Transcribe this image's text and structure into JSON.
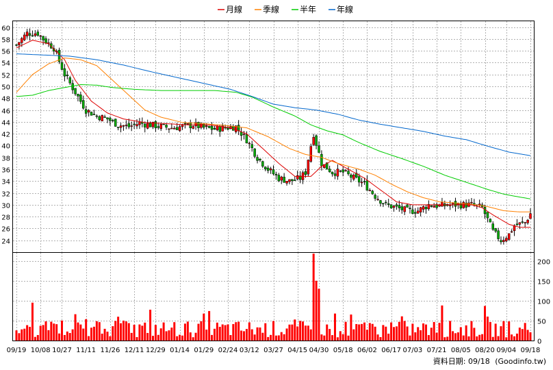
{
  "chart_data": {
    "type": "candlestick",
    "legend": [
      {
        "name": "月線",
        "color": "#dd0000"
      },
      {
        "name": "季線",
        "color": "#ff8000"
      },
      {
        "name": "半年",
        "color": "#00cc00"
      },
      {
        "name": "年線",
        "color": "#0066cc"
      }
    ],
    "price_axis": {
      "min": 22,
      "max": 61,
      "ticks": [
        24,
        26,
        28,
        30,
        32,
        34,
        36,
        38,
        40,
        42,
        44,
        46,
        48,
        50,
        52,
        54,
        56,
        58,
        60
      ]
    },
    "volume_axis": {
      "min": 0,
      "max": 220,
      "ticks": [
        0,
        50,
        100,
        150,
        200
      ]
    },
    "x_tick_labels": [
      "09/19",
      "10/08",
      "10/27",
      "11/11",
      "11/26",
      "12/11",
      "12/29",
      "01/14",
      "01/29",
      "02/24",
      "03/12",
      "03/27",
      "04/15",
      "04/30",
      "05/18",
      "06/02",
      "06/17",
      "07/03",
      "07/21",
      "08/05",
      "08/20",
      "09/04",
      "09/18"
    ],
    "grid": true,
    "colors": {
      "up": "#ff0000",
      "down": "#00aa00",
      "volume": "#ff0000",
      "grid": "#b0b0b0"
    },
    "price_key": [
      [
        0,
        57
      ],
      [
        4,
        59
      ],
      [
        8,
        59
      ],
      [
        10,
        58
      ],
      [
        14,
        56.5
      ],
      [
        18,
        52
      ],
      [
        22,
        49
      ],
      [
        26,
        46
      ],
      [
        30,
        45
      ],
      [
        34,
        44.5
      ],
      [
        38,
        43.5
      ],
      [
        42,
        43.2
      ],
      [
        46,
        43.8
      ],
      [
        50,
        43.5
      ],
      [
        54,
        43.2
      ],
      [
        58,
        43
      ],
      [
        62,
        43.2
      ],
      [
        66,
        43.5
      ],
      [
        70,
        43
      ],
      [
        74,
        42.8
      ],
      [
        78,
        43
      ],
      [
        82,
        43.2
      ],
      [
        86,
        41
      ],
      [
        90,
        38
      ],
      [
        94,
        36
      ],
      [
        98,
        34.5
      ],
      [
        102,
        34
      ],
      [
        106,
        34.5
      ],
      [
        108,
        35.5
      ],
      [
        110,
        40
      ],
      [
        111,
        42
      ],
      [
        114,
        37
      ],
      [
        118,
        35.5
      ],
      [
        122,
        35.5
      ],
      [
        126,
        34.5
      ],
      [
        130,
        33.5
      ],
      [
        134,
        31.5
      ],
      [
        138,
        30
      ],
      [
        142,
        29.5
      ],
      [
        146,
        29
      ],
      [
        150,
        29
      ],
      [
        154,
        30
      ],
      [
        158,
        29.8
      ],
      [
        162,
        30
      ],
      [
        166,
        30
      ],
      [
        170,
        30
      ],
      [
        174,
        29.5
      ],
      [
        178,
        25.5
      ],
      [
        181,
        24
      ],
      [
        184,
        25
      ],
      [
        186,
        26.5
      ],
      [
        190,
        27
      ],
      [
        192,
        28.5
      ]
    ],
    "moving_averages": {
      "月線": [
        [
          0,
          56.5
        ],
        [
          6,
          57.8
        ],
        [
          12,
          57.2
        ],
        [
          18,
          54.5
        ],
        [
          22,
          51
        ],
        [
          28,
          47.5
        ],
        [
          34,
          45.5
        ],
        [
          40,
          44.5
        ],
        [
          48,
          43.9
        ],
        [
          56,
          43.7
        ],
        [
          64,
          43.5
        ],
        [
          72,
          43.5
        ],
        [
          80,
          43
        ],
        [
          86,
          42
        ],
        [
          92,
          39.5
        ],
        [
          98,
          37
        ],
        [
          104,
          34.8
        ],
        [
          110,
          34.8
        ],
        [
          114,
          36.5
        ],
        [
          118,
          37.5
        ],
        [
          124,
          36
        ],
        [
          130,
          34.5
        ],
        [
          136,
          32.5
        ],
        [
          142,
          30.5
        ],
        [
          148,
          30
        ],
        [
          156,
          30
        ],
        [
          164,
          30
        ],
        [
          170,
          30
        ],
        [
          174,
          29.5
        ],
        [
          178,
          28.3
        ],
        [
          184,
          26.7
        ],
        [
          188,
          26.2
        ],
        [
          192,
          26.2
        ]
      ],
      "季線": [
        [
          0,
          49
        ],
        [
          6,
          52
        ],
        [
          12,
          53.8
        ],
        [
          18,
          54.8
        ],
        [
          24,
          54.5
        ],
        [
          30,
          53.5
        ],
        [
          36,
          51
        ],
        [
          42,
          48.5
        ],
        [
          48,
          46
        ],
        [
          54,
          44.8
        ],
        [
          62,
          43.9
        ],
        [
          70,
          43.7
        ],
        [
          78,
          43.4
        ],
        [
          86,
          43
        ],
        [
          94,
          41.5
        ],
        [
          102,
          39.5
        ],
        [
          108,
          38.5
        ],
        [
          114,
          38
        ],
        [
          120,
          37
        ],
        [
          128,
          36
        ],
        [
          134,
          35
        ],
        [
          140,
          33.5
        ],
        [
          146,
          32.2
        ],
        [
          152,
          31.2
        ],
        [
          158,
          30.5
        ],
        [
          164,
          30.3
        ],
        [
          170,
          30.1
        ],
        [
          176,
          29.7
        ],
        [
          182,
          29
        ],
        [
          188,
          28.8
        ],
        [
          192,
          28.8
        ]
      ],
      "半年": [
        [
          0,
          48.3
        ],
        [
          6,
          48.5
        ],
        [
          12,
          49.3
        ],
        [
          18,
          49.8
        ],
        [
          24,
          50.3
        ],
        [
          30,
          50.2
        ],
        [
          36,
          49.8
        ],
        [
          44,
          49.5
        ],
        [
          54,
          49.3
        ],
        [
          64,
          49.3
        ],
        [
          74,
          49.3
        ],
        [
          82,
          49
        ],
        [
          88,
          48.2
        ],
        [
          96,
          46.5
        ],
        [
          104,
          45
        ],
        [
          110,
          43.5
        ],
        [
          116,
          42.5
        ],
        [
          122,
          41.8
        ],
        [
          128,
          40.5
        ],
        [
          136,
          39
        ],
        [
          144,
          37.8
        ],
        [
          152,
          36.5
        ],
        [
          160,
          35
        ],
        [
          168,
          33.8
        ],
        [
          176,
          32.6
        ],
        [
          182,
          31.8
        ],
        [
          188,
          31.3
        ],
        [
          192,
          31
        ]
      ],
      "年線": [
        [
          0,
          55.5
        ],
        [
          10,
          55.3
        ],
        [
          20,
          55.1
        ],
        [
          30,
          54.5
        ],
        [
          40,
          53.6
        ],
        [
          50,
          52.5
        ],
        [
          60,
          51.5
        ],
        [
          70,
          50.5
        ],
        [
          80,
          49.5
        ],
        [
          88,
          48.3
        ],
        [
          96,
          47
        ],
        [
          104,
          46.4
        ],
        [
          112,
          46
        ],
        [
          120,
          45.3
        ],
        [
          128,
          44.3
        ],
        [
          136,
          43.6
        ],
        [
          144,
          43
        ],
        [
          152,
          42.4
        ],
        [
          160,
          41.6
        ],
        [
          168,
          41
        ],
        [
          176,
          39.9
        ],
        [
          184,
          38.9
        ],
        [
          192,
          38.3
        ]
      ]
    }
  },
  "footer": {
    "date_label": "資料日期: 09/18",
    "source": "(Goodinfo.tw)"
  }
}
